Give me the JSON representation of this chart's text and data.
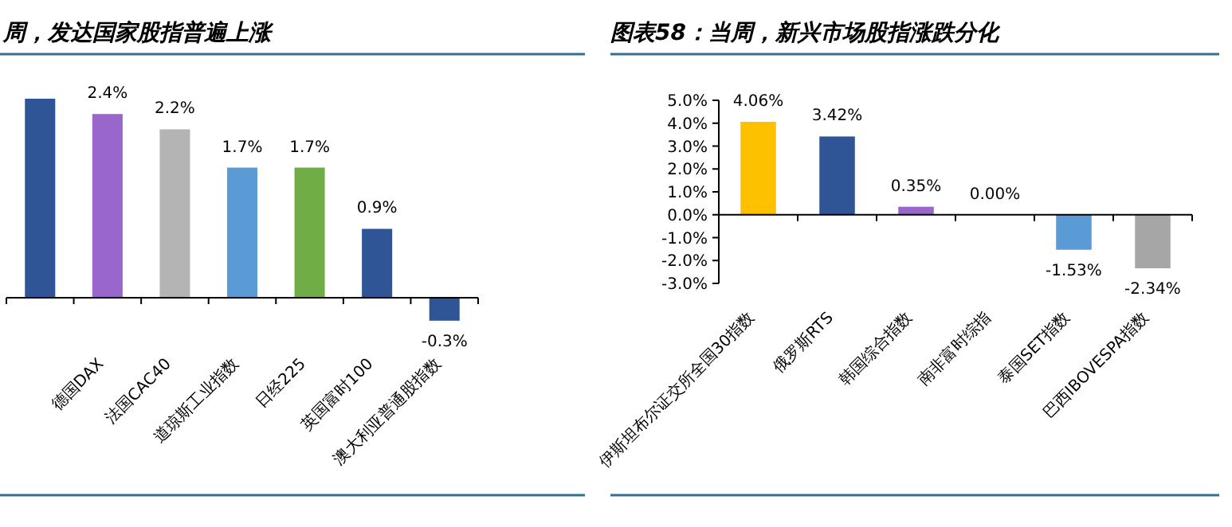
{
  "chart_data": [
    {
      "type": "bar",
      "title": "周，发达国家股指普遍上涨",
      "categories": [
        null,
        "德国DAX",
        "法国CAC40",
        "道琼斯工业指数",
        "日经225",
        "英国富时100",
        "澳大利亚普通股指数"
      ],
      "values": [
        2.6,
        2.4,
        2.2,
        1.7,
        1.7,
        0.9,
        -0.3
      ],
      "colors": [
        "#2f5597",
        "#9966cc",
        "#b4b4b4",
        "#5b9bd5",
        "#70ad47",
        "#2f5597",
        "#2f5597"
      ],
      "value_labels": [
        null,
        "2.4%",
        "2.2%",
        "1.7%",
        "1.7%",
        "0.9%",
        "-0.3%"
      ]
    },
    {
      "type": "bar",
      "title": "图表58：当周，新兴市场股指涨跌分化",
      "categories": [
        "伊斯坦布尔证交所全国30指数",
        "俄罗斯RTS",
        "韩国综合指数",
        "南非富时综指",
        "泰国SET指数",
        "巴西IBOVESPA指数"
      ],
      "values": [
        4.06,
        3.42,
        0.35,
        0.0,
        -1.53,
        -2.34
      ],
      "colors": [
        "#ffc000",
        "#2f5597",
        "#9966cc",
        "#2f5597",
        "#5b9bd5",
        "#a6a6a6"
      ],
      "value_labels": [
        "4.06%",
        "3.42%",
        "0.35%",
        "0.00%",
        "-1.53%",
        "-2.34%"
      ],
      "ylim": [
        -3,
        5
      ],
      "yticks": [
        {
          "value": -3,
          "label": "-3.0%"
        },
        {
          "value": -2,
          "label": "-2.0%"
        },
        {
          "value": -1,
          "label": "-1.0%"
        },
        {
          "value": 0,
          "label": "0.0%"
        },
        {
          "value": 1,
          "label": "1.0%"
        },
        {
          "value": 2,
          "label": "2.0%"
        },
        {
          "value": 3,
          "label": "3.0%"
        },
        {
          "value": 4,
          "label": "4.0%"
        },
        {
          "value": 5,
          "label": "5.0%"
        }
      ]
    }
  ]
}
